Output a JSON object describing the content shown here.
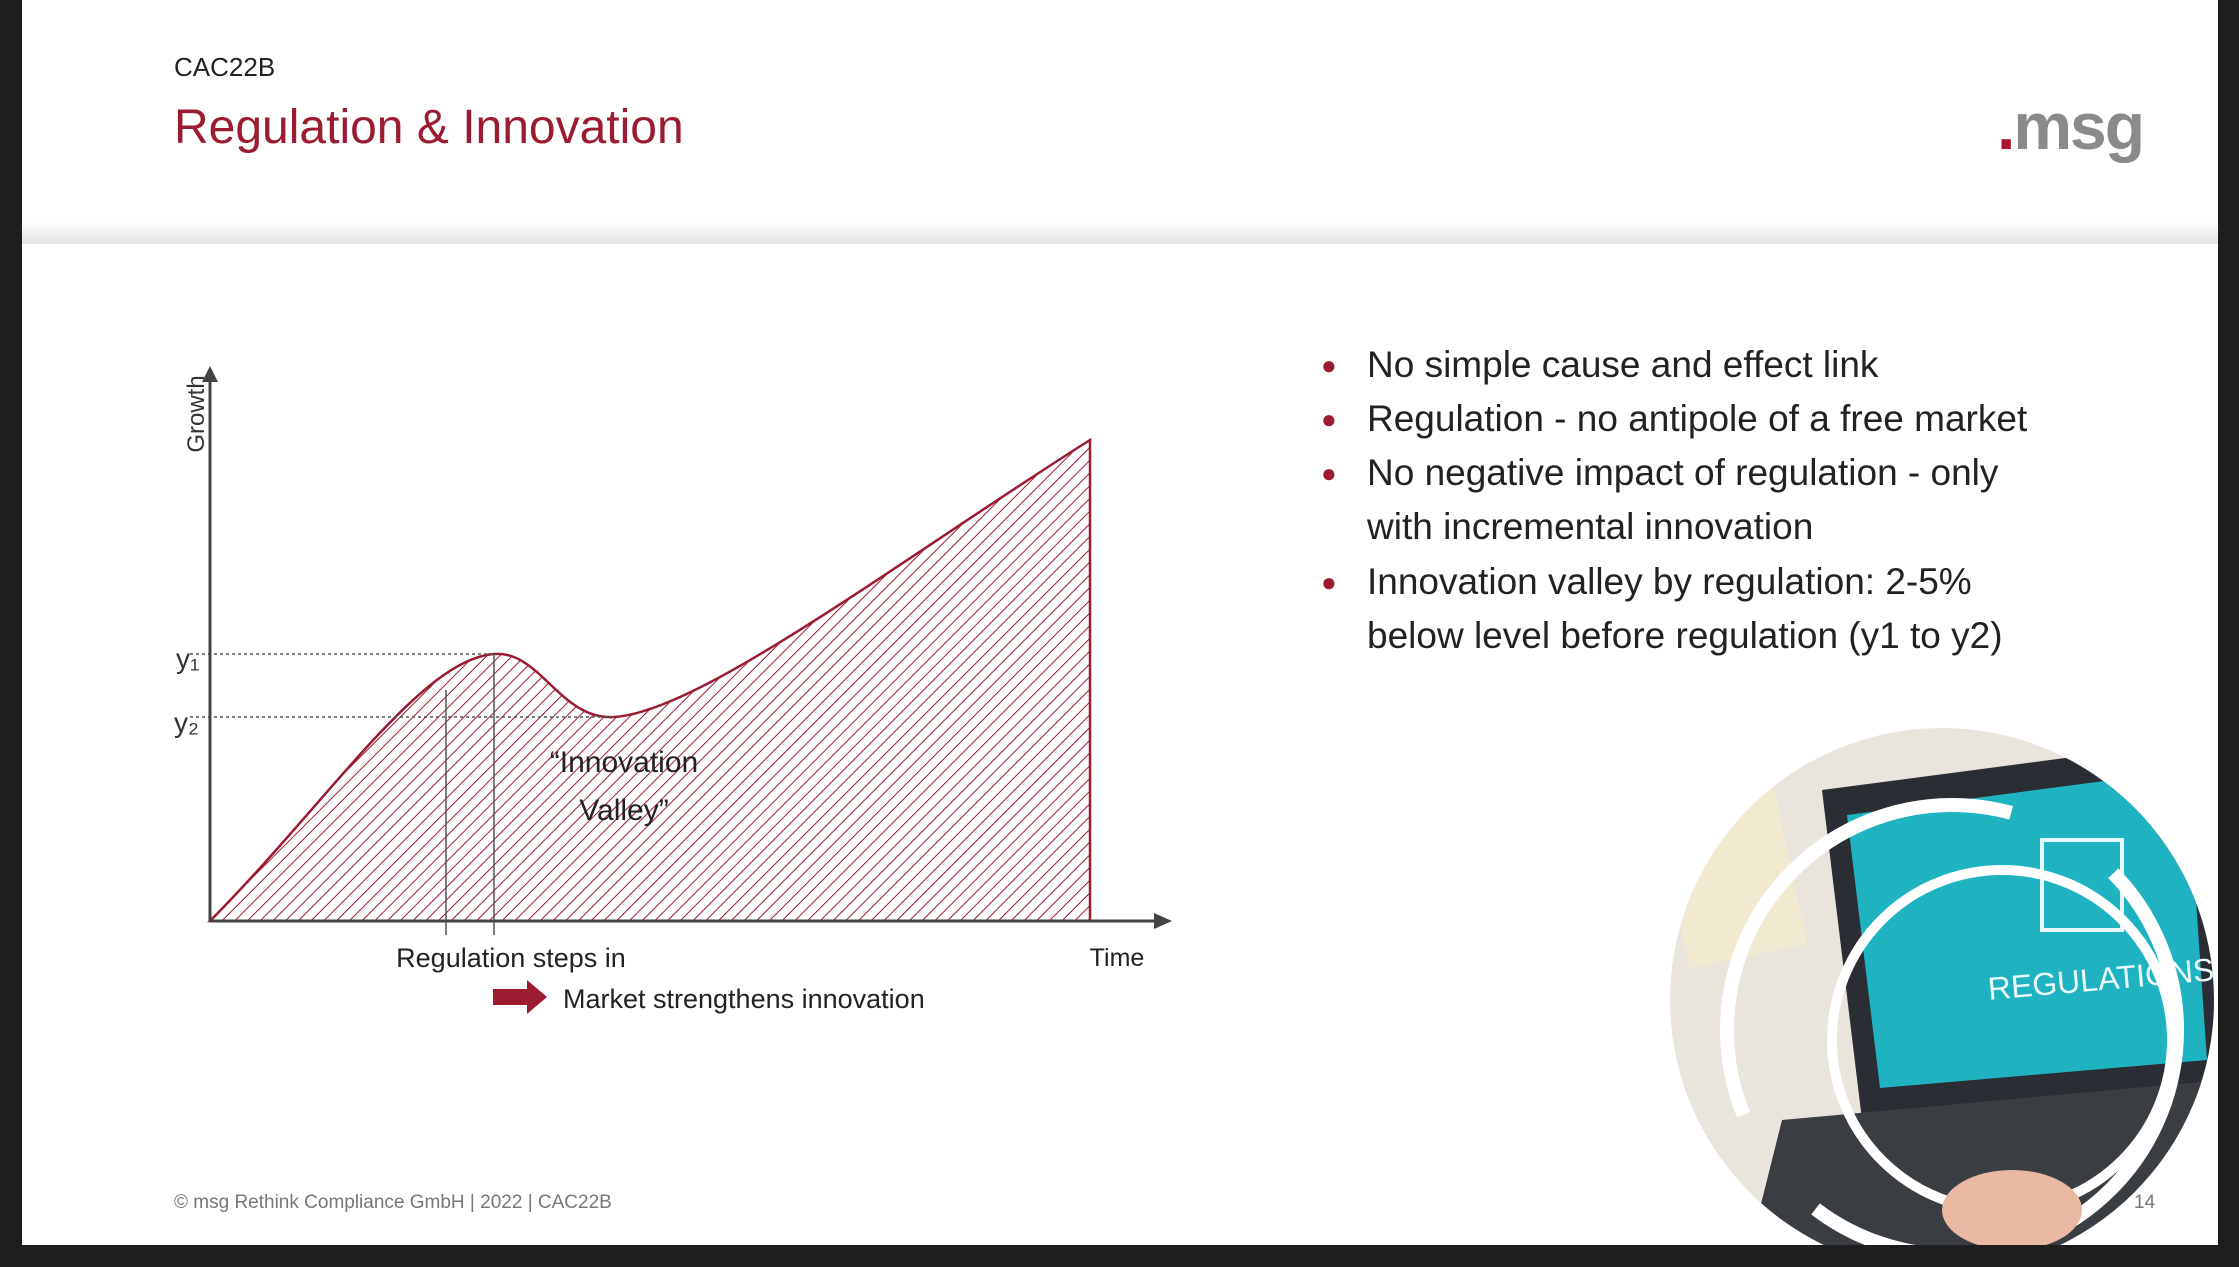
{
  "header": {
    "code": "CAC22B",
    "title": "Regulation & Innovation",
    "logo": "msg"
  },
  "diagram": {
    "y_axis_label": "Growth",
    "x_axis_label": "Time",
    "y1_label": "y₁",
    "y2_label": "y₂",
    "valley_label": [
      "“Innovation",
      "Valley”"
    ],
    "regulation_label": "Regulation steps in",
    "arrow_label": "Market strengthens innovation"
  },
  "bullets": [
    [
      "No simple cause and effect link"
    ],
    [
      "Regulation - no antipole of a free market"
    ],
    [
      "No negative impact of regulation - only",
      "with incremental innovation"
    ],
    [
      "Innovation valley by regulation: 2-5%",
      "below level before regulation (y1 to y2)"
    ]
  ],
  "image_text": "REGULATIONS",
  "footer": {
    "copyright": "© msg Rethink Compliance GmbH | 2022 | CAC22B",
    "page": "14"
  }
}
